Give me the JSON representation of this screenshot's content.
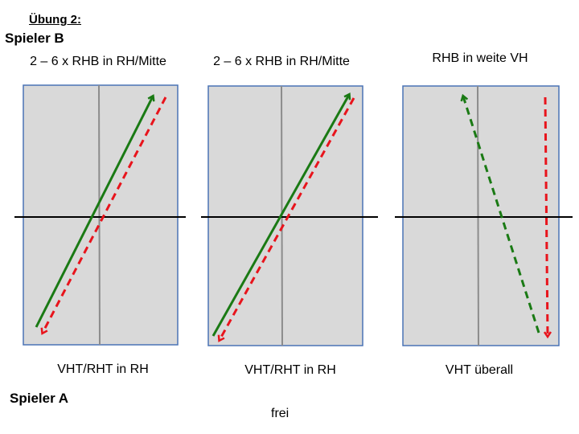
{
  "exercise_title": "Übung 2:",
  "player_b_label": "Spieler B",
  "player_a_label": "Spieler A",
  "free_label": "frei",
  "panels": [
    {
      "top_caption": "2 – 6 x RHB in RH/Mitte",
      "bottom_caption": "VHT/RHT in RH"
    },
    {
      "top_caption": "2 – 6 x RHB in RH/Mitte",
      "bottom_caption": "VHT/RHT in RH"
    },
    {
      "top_caption": "RHB in weite VH",
      "bottom_caption": "VHT überall"
    }
  ],
  "colors": {
    "table_fill": "#d9d9d9",
    "table_border": "#4a73b5",
    "center_line": "#8c8c8c",
    "net": "#000000",
    "green_arrow": "#1a7a14",
    "red_arrow": "#e8141c"
  }
}
